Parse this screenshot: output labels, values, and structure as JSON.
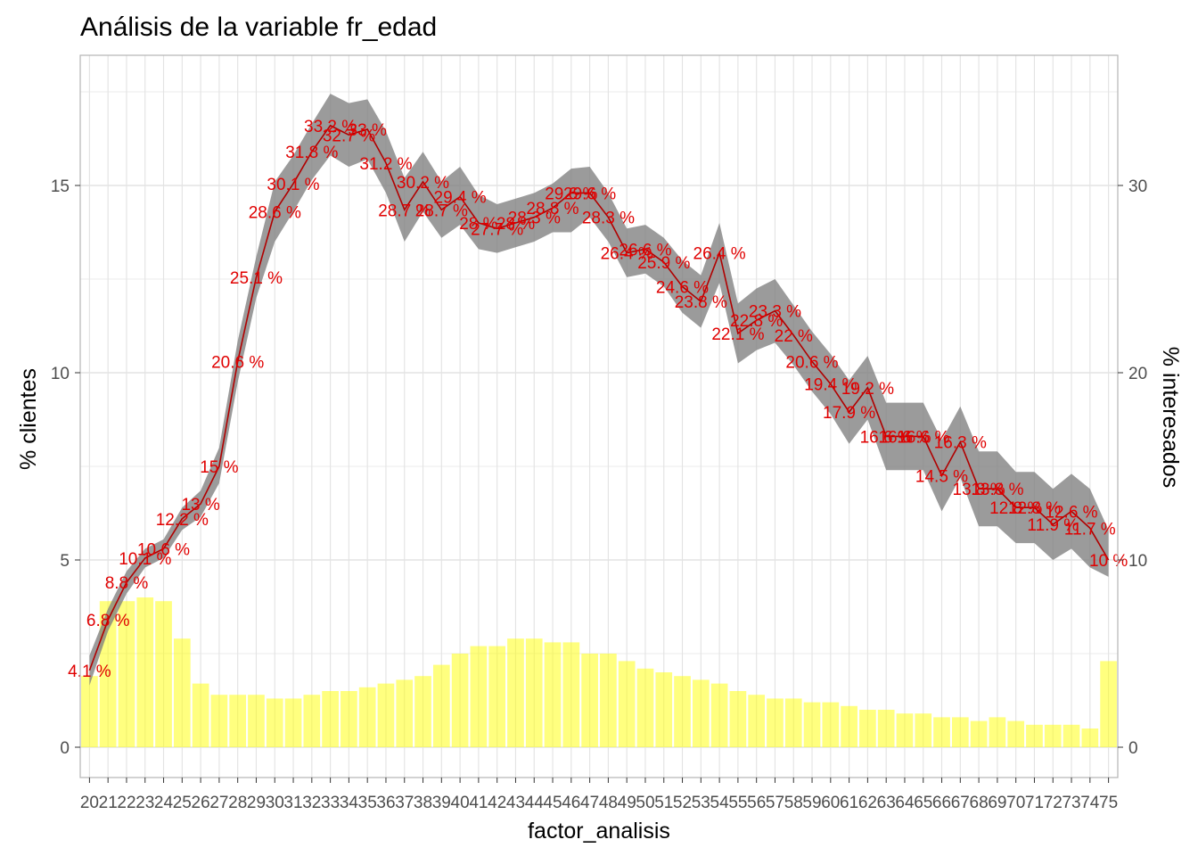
{
  "chart_data": {
    "type": "bar+line",
    "title": "Análisis de la variable fr_edad",
    "xlabel": "factor_analisis",
    "ylabel_left": "% clientes",
    "ylabel_right": "% interesados",
    "categories": [
      "20",
      "21",
      "22",
      "23",
      "24",
      "25",
      "26",
      "27",
      "28",
      "29",
      "30",
      "31",
      "32",
      "33",
      "34",
      "35",
      "36",
      "37",
      "38",
      "39",
      "40",
      "41",
      "42",
      "43",
      "44",
      "45",
      "46",
      "47",
      "48",
      "49",
      "50",
      "51",
      "52",
      "53",
      "54",
      "55",
      "56",
      "57",
      "58",
      "59",
      "60",
      "61",
      "62",
      "63",
      "64",
      "65",
      "66",
      "67",
      "68",
      "69",
      "70",
      "71",
      "72",
      "73",
      "74",
      "75"
    ],
    "bars": {
      "axis": "left",
      "values": [
        1.9,
        3.9,
        3.9,
        4.0,
        3.9,
        2.9,
        1.7,
        1.4,
        1.4,
        1.4,
        1.3,
        1.3,
        1.4,
        1.5,
        1.5,
        1.6,
        1.7,
        1.8,
        1.9,
        2.2,
        2.5,
        2.7,
        2.7,
        2.9,
        2.9,
        2.8,
        2.8,
        2.5,
        2.5,
        2.3,
        2.1,
        2.0,
        1.9,
        1.8,
        1.7,
        1.5,
        1.4,
        1.3,
        1.3,
        1.2,
        1.2,
        1.1,
        1.0,
        1.0,
        0.9,
        0.9,
        0.8,
        0.8,
        0.7,
        0.8,
        0.7,
        0.6,
        0.6,
        0.6,
        0.5,
        2.3
      ],
      "color": "#ffff00"
    },
    "line": {
      "axis": "right",
      "values": [
        4.1,
        6.8,
        8.8,
        10.1,
        10.6,
        12.2,
        13.0,
        15.0,
        20.6,
        25.1,
        28.6,
        30.1,
        31.8,
        33.2,
        32.7,
        33.0,
        31.2,
        28.7,
        30.2,
        28.7,
        29.4,
        28.0,
        27.7,
        28.0,
        28.3,
        28.8,
        29.6,
        29.6,
        28.3,
        26.4,
        26.6,
        25.9,
        24.6,
        23.8,
        26.4,
        22.1,
        22.8,
        23.3,
        22.0,
        20.6,
        19.4,
        17.9,
        19.2,
        16.6,
        16.6,
        16.6,
        14.5,
        16.3,
        13.8,
        13.8,
        12.8,
        12.8,
        11.9,
        12.6,
        11.7,
        10.0
      ],
      "labels": [
        "4.1 %",
        "6.8 %",
        "8.8 %",
        "10.1 %",
        "10.6 %",
        "12.2 %",
        "13 %",
        "15 %",
        "20.6 %",
        "25.1 %",
        "28.6 %",
        "30.1 %",
        "31.8 %",
        "33.2 %",
        "32.7 %",
        "33 %",
        "31.2 %",
        "28.7 %",
        "30.2 %",
        "28.7 %",
        "29.4 %",
        "28 %",
        "27.7 %",
        "28 %",
        "28.3 %",
        "28.8 %",
        "29.6 %",
        "29.6 %",
        "28.3 %",
        "26.4 %",
        "26.6 %",
        "25.9 %",
        "24.6 %",
        "23.8 %",
        "26.4 %",
        "22.1 %",
        "22.8 %",
        "23.3 %",
        "22 %",
        "20.6 %",
        "19.4 %",
        "17.9 %",
        "19.2 %",
        "16.6 %",
        "16.6 %",
        "16.6 %",
        "14.5 %",
        "16.3 %",
        "13.8 %",
        "13.8 %",
        "12.8 %",
        "12.8 %",
        "11.9 %",
        "12.6 %",
        "11.7 %",
        "10 %"
      ],
      "color": "#b00000",
      "label_color": "#e00000"
    },
    "band": {
      "axis": "right",
      "lower": [
        3.3,
        6.2,
        8.2,
        9.6,
        10.1,
        11.6,
        12.3,
        14.1,
        19.5,
        24.0,
        27.0,
        28.6,
        30.3,
        31.6,
        31.0,
        31.4,
        29.6,
        27.0,
        28.6,
        27.2,
        27.9,
        26.6,
        26.4,
        26.7,
        27.0,
        27.5,
        27.5,
        28.3,
        27.0,
        25.1,
        25.3,
        24.6,
        23.2,
        22.4,
        24.8,
        20.5,
        21.2,
        21.6,
        20.4,
        19.0,
        17.8,
        16.2,
        17.5,
        14.8,
        14.8,
        14.8,
        12.6,
        14.4,
        11.8,
        11.8,
        10.9,
        10.9,
        10.0,
        10.6,
        9.6,
        9.1
      ],
      "upper": [
        4.9,
        7.4,
        9.4,
        10.6,
        11.1,
        12.8,
        13.7,
        16.0,
        21.7,
        26.2,
        30.2,
        31.6,
        33.3,
        34.9,
        34.4,
        34.6,
        32.9,
        30.4,
        31.8,
        30.2,
        31.0,
        29.5,
        29.0,
        29.3,
        29.6,
        30.1,
        30.9,
        31.0,
        29.6,
        27.7,
        27.9,
        27.2,
        26.0,
        25.2,
        28.0,
        23.7,
        24.5,
        25.0,
        23.6,
        22.2,
        21.0,
        19.6,
        20.9,
        18.4,
        18.4,
        18.4,
        16.4,
        18.2,
        15.8,
        15.8,
        14.7,
        14.7,
        13.8,
        14.6,
        13.8,
        11.6
      ],
      "color": "#7f7f7f"
    },
    "ylim_left": [
      0,
      17.5
    ],
    "ylim_right": [
      0,
      35
    ],
    "yticks_left": [
      "0",
      "5",
      "10",
      "15"
    ],
    "yticks_right": [
      "0",
      "10",
      "20",
      "30"
    ],
    "grid": true,
    "legend": "none"
  }
}
